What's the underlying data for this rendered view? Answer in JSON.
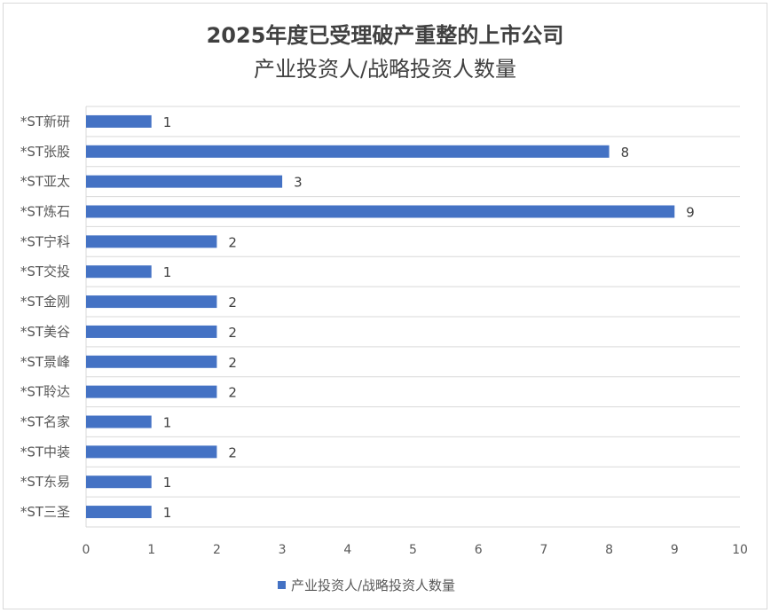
{
  "chart_data": {
    "type": "bar",
    "orientation": "horizontal",
    "title_line1": "2025年度已受理破产重整的上市公司",
    "title_line2": "产业投资人/战略投资人数量",
    "categories": [
      "*ST新研",
      "*ST张股",
      "*ST亚太",
      "*ST炼石",
      "*ST宁科",
      "*ST交投",
      "*ST金刚",
      "*ST美谷",
      "*ST景峰",
      "*ST聆达",
      "*ST名家",
      "*ST中装",
      "*ST东易",
      "*ST三圣"
    ],
    "series": [
      {
        "name": "产业投资人/战略投资人数量",
        "values": [
          1,
          8,
          3,
          9,
          2,
          1,
          2,
          2,
          2,
          2,
          1,
          2,
          1,
          1
        ],
        "color": "#4472c4"
      }
    ],
    "xlim": [
      0,
      10
    ],
    "xticks": [
      "0",
      "1",
      "2",
      "3",
      "4",
      "5",
      "6",
      "7",
      "8",
      "9",
      "10"
    ],
    "grid": "horizontal-category-lines",
    "data_labels": true,
    "legend": "bottom"
  }
}
